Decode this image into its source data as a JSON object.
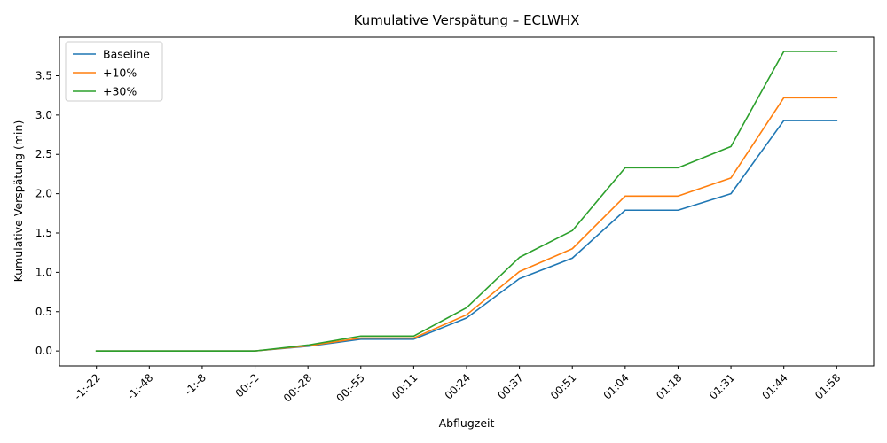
{
  "chart_data": {
    "type": "line",
    "title": "Kumulative Verspätung – ECLWHX",
    "xlabel": "Abflugzeit",
    "ylabel": "Kumulative Verspätung (min)",
    "categories": [
      "-1:-22",
      "-1:-48",
      "-1:-8",
      "00:-2",
      "00:-28",
      "00:-55",
      "00:11",
      "00:24",
      "00:37",
      "00:51",
      "01:04",
      "01:18",
      "01:31",
      "01:44",
      "01:58"
    ],
    "ylim": [
      -0.19,
      3.99
    ],
    "yticks": [
      "0.0",
      "0.5",
      "1.0",
      "1.5",
      "2.0",
      "2.5",
      "3.0",
      "3.5"
    ],
    "grid": false,
    "legend_position": "top-left",
    "series": [
      {
        "name": "Baseline",
        "color": "#1f77b4",
        "values": [
          0,
          0,
          0,
          0,
          0.06,
          0.15,
          0.15,
          0.42,
          0.92,
          1.18,
          1.79,
          1.79,
          2.0,
          2.93,
          2.93
        ]
      },
      {
        "name": "+10%",
        "color": "#ff7f0e",
        "values": [
          0,
          0,
          0,
          0,
          0.065,
          0.165,
          0.165,
          0.46,
          1.01,
          1.3,
          1.97,
          1.97,
          2.2,
          3.22,
          3.22
        ]
      },
      {
        "name": "+30%",
        "color": "#2ca02c",
        "values": [
          0,
          0,
          0,
          0,
          0.075,
          0.19,
          0.19,
          0.55,
          1.19,
          1.53,
          2.33,
          2.33,
          2.6,
          3.81,
          3.81
        ]
      }
    ]
  }
}
